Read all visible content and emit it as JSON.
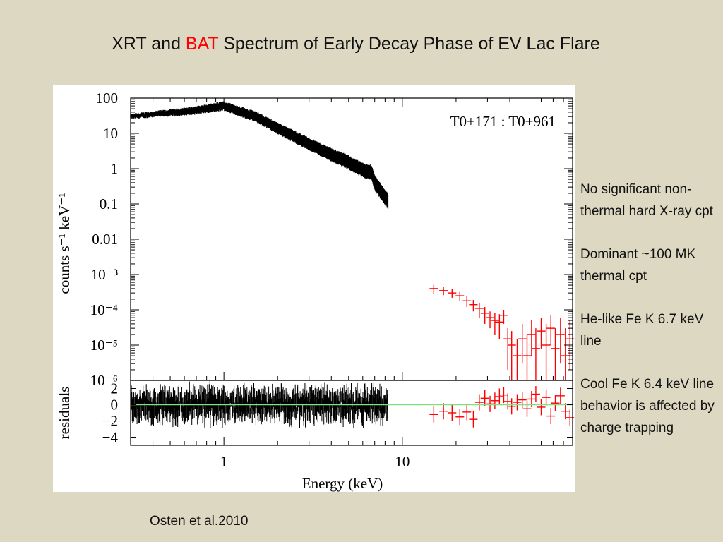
{
  "slide": {
    "title_before": "XRT and ",
    "title_highlight": "BAT",
    "title_after": " Spectrum of Early Decay Phase of EV Lac Flare",
    "notes": [
      "No significant non-thermal hard X-ray cpt",
      "Dominant ~100 MK thermal cpt",
      "He-like Fe K 6.7 keV line",
      "Cool Fe K 6.4 keV line behavior is affected by charge trapping"
    ],
    "citation": "Osten et al.2010"
  },
  "colors": {
    "background": "#ddd8c2",
    "title_highlight": "#ff0000",
    "xrt": "#000000",
    "bat": "#ff0000",
    "zero_line": "#7fe07f"
  },
  "chart_data": {
    "type": "scatter",
    "annotation": "T0+171 : T0+961",
    "xlabel": "Energy (keV)",
    "ylabel_main": "counts s⁻¹ keV⁻¹",
    "ylabel_resid": "residuals",
    "x_scale": "log",
    "y_scale_main": "log",
    "xlim": [
      0.3,
      90
    ],
    "ylim_main": [
      1e-06,
      100
    ],
    "ylim_resid": [
      -5,
      3
    ],
    "x_ticks": [
      {
        "value": 1,
        "label": "1"
      },
      {
        "value": 10,
        "label": "10"
      }
    ],
    "y_ticks_main": [
      {
        "value": 100,
        "label": "100"
      },
      {
        "value": 10,
        "label": "10"
      },
      {
        "value": 1,
        "label": "1"
      },
      {
        "value": 0.1,
        "label": "0.1"
      },
      {
        "value": 0.01,
        "label": "0.01"
      },
      {
        "value": 0.001,
        "label": "10⁻³"
      },
      {
        "value": 0.0001,
        "label": "10⁻⁴"
      },
      {
        "value": 1e-05,
        "label": "10⁻⁵"
      },
      {
        "value": 1e-06,
        "label": "10⁻⁶"
      }
    ],
    "y_ticks_resid": [
      {
        "value": 2,
        "label": "2"
      },
      {
        "value": 0,
        "label": "0"
      },
      {
        "value": -2,
        "label": "−2"
      },
      {
        "value": -4,
        "label": "−4"
      }
    ],
    "series": [
      {
        "instrument": "XRT",
        "color": "#000000",
        "spectrum_profile": [
          {
            "x": 0.3,
            "y": 30
          },
          {
            "x": 0.4,
            "y": 35
          },
          {
            "x": 0.5,
            "y": 38
          },
          {
            "x": 0.7,
            "y": 45
          },
          {
            "x": 1.0,
            "y": 60
          },
          {
            "x": 1.5,
            "y": 30
          },
          {
            "x": 2.0,
            "y": 14
          },
          {
            "x": 3.0,
            "y": 5
          },
          {
            "x": 4.0,
            "y": 2.5
          },
          {
            "x": 5.0,
            "y": 1.5
          },
          {
            "x": 6.0,
            "y": 0.9
          },
          {
            "x": 6.7,
            "y": 0.8
          },
          {
            "x": 7.0,
            "y": 0.4
          },
          {
            "x": 8.0,
            "y": 0.15
          },
          {
            "x": 8.3,
            "y": 0.12
          }
        ]
      },
      {
        "instrument": "BAT",
        "color": "#ff0000",
        "points": [
          {
            "x": 15,
            "y": 0.0004,
            "yerr_low": 0.00029,
            "yerr_high": 0.00051,
            "resid": -1.2
          },
          {
            "x": 17,
            "y": 0.00035,
            "yerr_low": 0.00026,
            "yerr_high": 0.00044,
            "resid": -0.8
          },
          {
            "x": 19,
            "y": 0.0003,
            "yerr_low": 0.00022,
            "yerr_high": 0.00038,
            "resid": -1.0
          },
          {
            "x": 21,
            "y": 0.00025,
            "yerr_low": 0.00018,
            "yerr_high": 0.00032,
            "resid": -1.5
          },
          {
            "x": 23,
            "y": 0.00018,
            "yerr_low": 0.00012,
            "yerr_high": 0.00024,
            "resid": -0.9
          },
          {
            "x": 25,
            "y": 0.00014,
            "yerr_low": 9e-05,
            "yerr_high": 0.00019,
            "resid": -1.8
          },
          {
            "x": 27,
            "y": 0.00011,
            "yerr_low": 6e-05,
            "yerr_high": 0.00016,
            "resid": 0.3
          },
          {
            "x": 29,
            "y": 8e-05,
            "yerr_low": 4e-05,
            "yerr_high": 0.00012,
            "resid": 0.8
          },
          {
            "x": 31,
            "y": 6e-05,
            "yerr_low": 3e-05,
            "yerr_high": 9e-05,
            "resid": 0.1
          },
          {
            "x": 33,
            "y": 5e-05,
            "yerr_low": 2e-05,
            "yerr_high": 8e-05,
            "resid": 0.5
          },
          {
            "x": 35,
            "y": 4.5e-05,
            "yerr_low": 1.5e-05,
            "yerr_high": 7.5e-05,
            "resid": 1.0
          },
          {
            "x": 37,
            "y": 7e-05,
            "yerr_low": 4e-05,
            "yerr_high": 0.0001,
            "resid": 1.2
          },
          {
            "x": 39,
            "y": 1.5e-05,
            "yerr_low": 2e-06,
            "yerr_high": 3e-05,
            "resid": 0.4
          },
          {
            "x": 41,
            "y": 1e-05,
            "yerr_low": 1e-06,
            "yerr_high": 2.5e-05,
            "resid": -0.2
          },
          {
            "x": 44,
            "y": 5e-06,
            "yerr_low": 1e-06,
            "yerr_high": 1.5e-05,
            "resid": 0.3
          },
          {
            "x": 47,
            "y": 1.5e-05,
            "yerr_low": 3e-06,
            "yerr_high": 4e-05,
            "resid": 0.6
          },
          {
            "x": 50,
            "y": 5e-06,
            "yerr_low": 1e-06,
            "yerr_high": 2e-05,
            "resid": -0.5
          },
          {
            "x": 53,
            "y": 2e-05,
            "yerr_low": 5e-06,
            "yerr_high": 5e-05,
            "resid": 0.7
          },
          {
            "x": 56,
            "y": 8e-06,
            "yerr_low": 1e-06,
            "yerr_high": 3e-05,
            "resid": 1.3
          },
          {
            "x": 60,
            "y": 2.5e-05,
            "yerr_low": 8e-06,
            "yerr_high": 6e-05,
            "resid": -0.3
          },
          {
            "x": 64,
            "y": 1e-05,
            "yerr_low": 1e-06,
            "yerr_high": 4e-05,
            "resid": 0.9
          },
          {
            "x": 68,
            "y": 3e-05,
            "yerr_low": 1e-05,
            "yerr_high": 7e-05,
            "resid": -1.4
          },
          {
            "x": 72,
            "y": 8e-06,
            "yerr_low": 1e-06,
            "yerr_high": 3e-05,
            "resid": 0.2
          },
          {
            "x": 77,
            "y": 2e-05,
            "yerr_low": 3e-06,
            "yerr_high": 6e-05,
            "resid": 1.1
          },
          {
            "x": 82,
            "y": 5e-06,
            "yerr_low": 1e-06,
            "yerr_high": 3e-05,
            "resid": -0.8
          },
          {
            "x": 87,
            "y": 1.5e-05,
            "yerr_low": 2e-06,
            "yerr_high": 5e-05,
            "resid": -1.6
          }
        ]
      }
    ]
  }
}
